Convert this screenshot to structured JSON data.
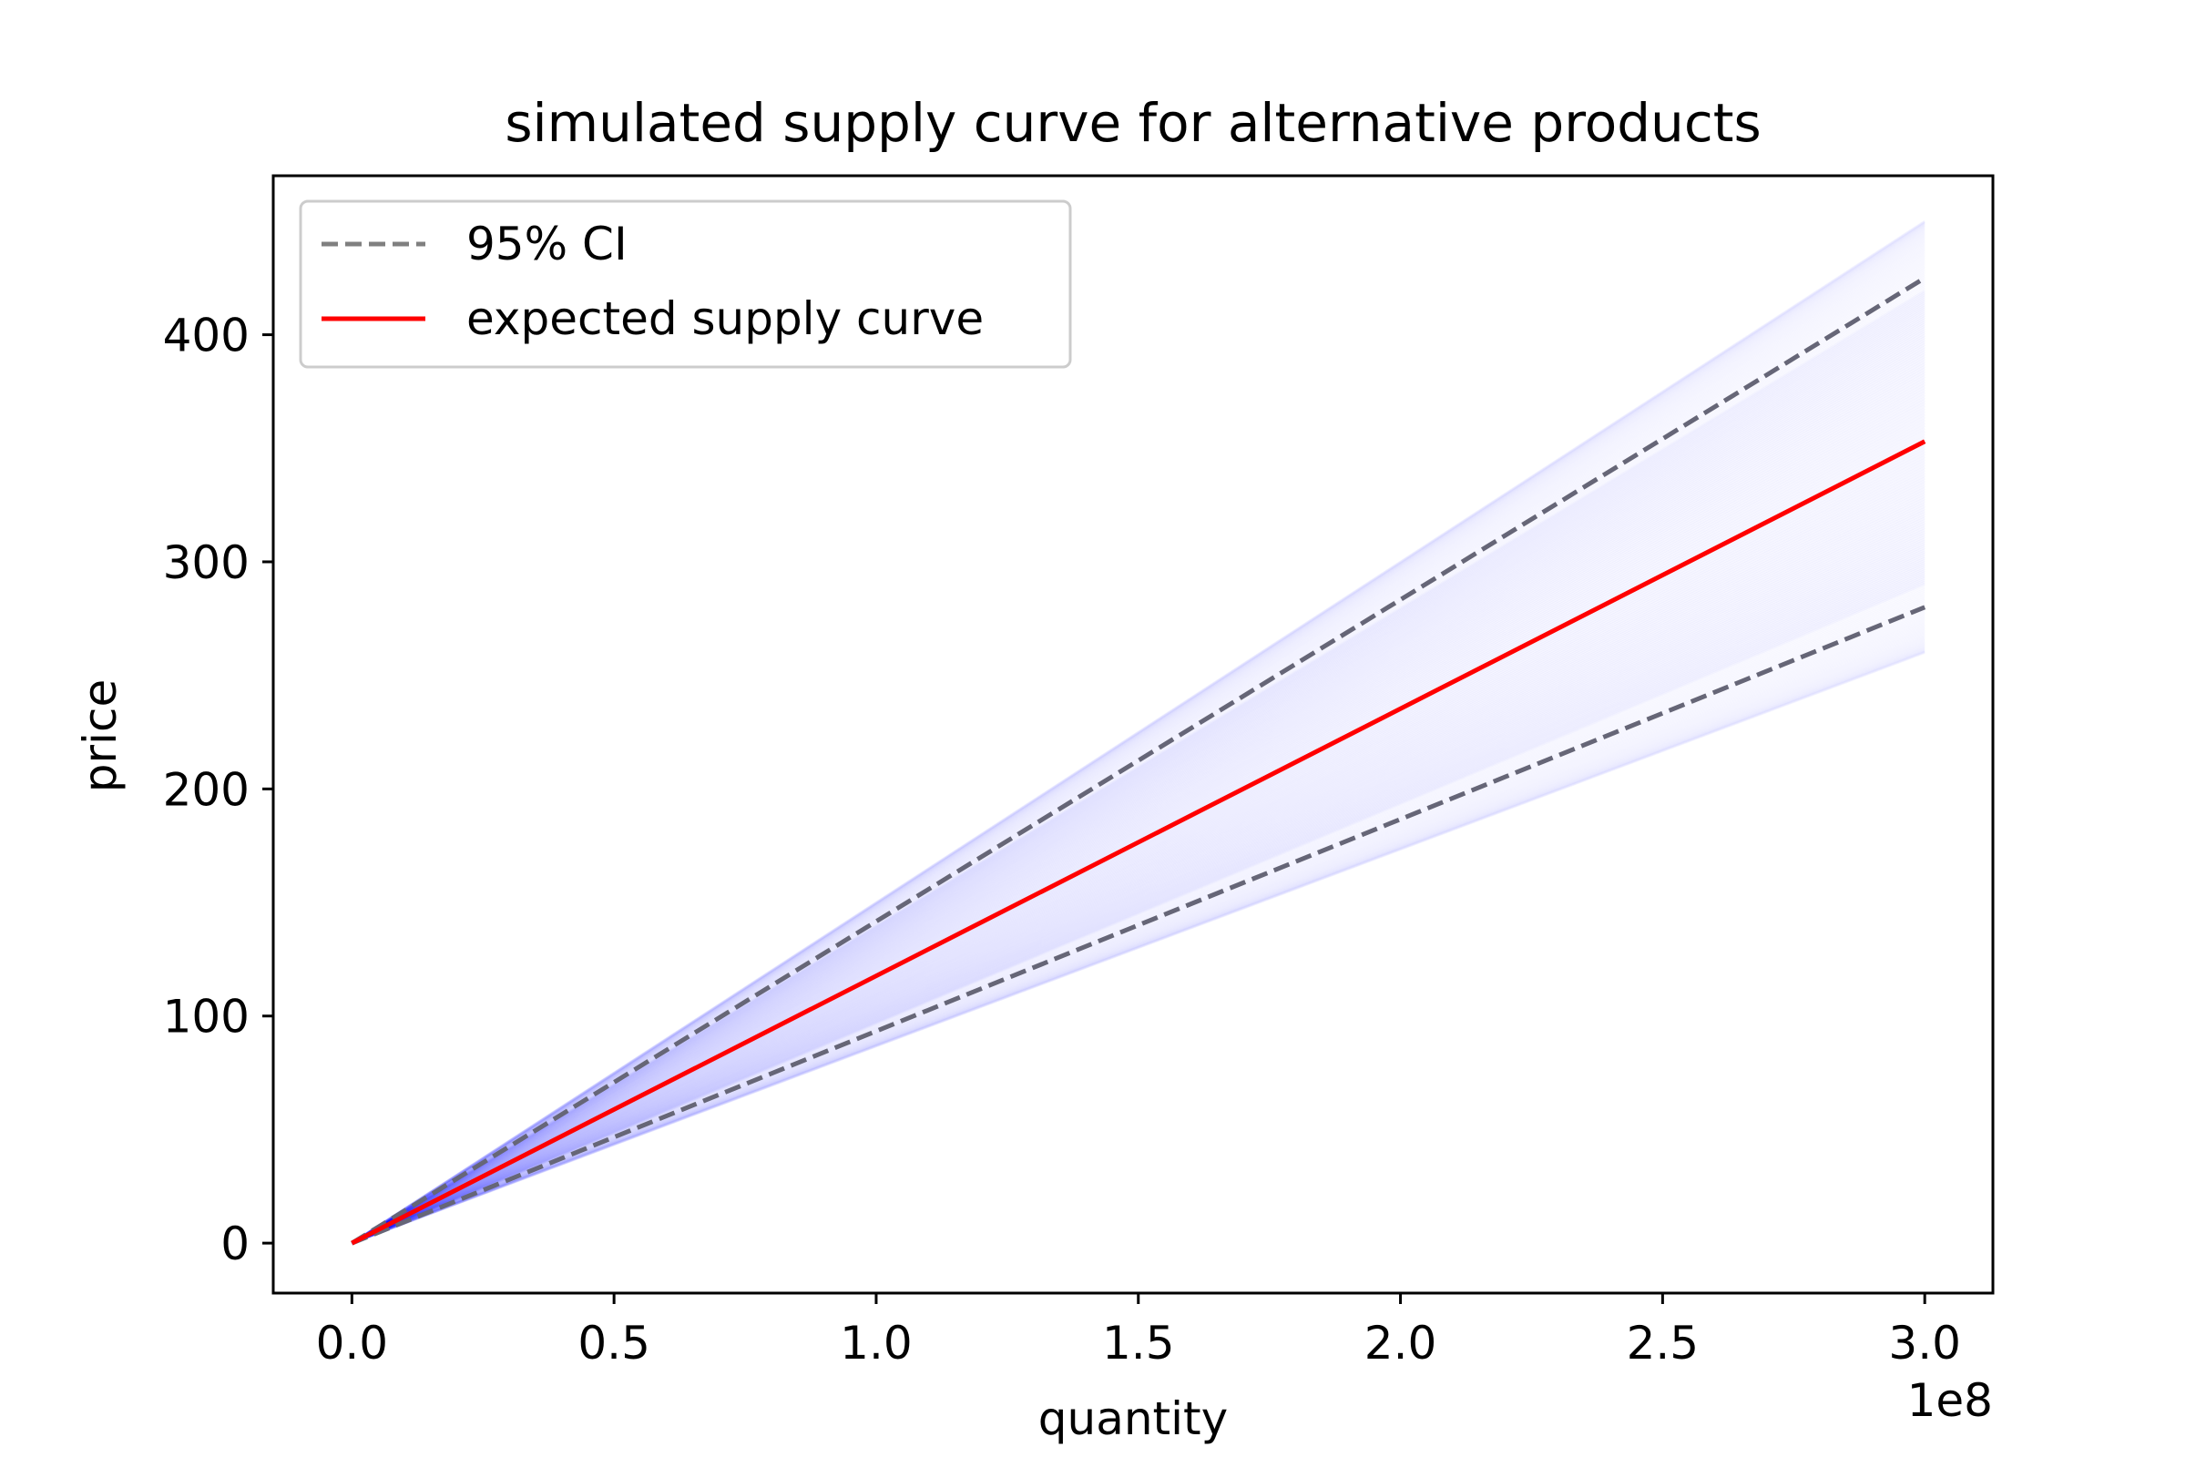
{
  "chart_data": {
    "type": "line",
    "title": "simulated supply curve for alternative products",
    "xlabel": "quantity",
    "ylabel": "price",
    "x_offset_label": "1e8",
    "xlim": [
      -0.15,
      3.13
    ],
    "ylim": [
      -22,
      470
    ],
    "xticks": [
      0.0,
      0.5,
      1.0,
      1.5,
      2.0,
      2.5,
      3.0
    ],
    "xtick_labels": [
      "0.0",
      "0.5",
      "1.0",
      "1.5",
      "2.0",
      "2.5",
      "3.0"
    ],
    "yticks": [
      0,
      100,
      200,
      300,
      400
    ],
    "ytick_labels": [
      "0",
      "100",
      "200",
      "300",
      "400"
    ],
    "grid": false,
    "legend_position": "upper-left",
    "x": [
      0.0,
      3.0
    ],
    "series": [
      {
        "name": "95% CI",
        "style": "dashed",
        "color": "#666677",
        "values": [
          0,
          425
        ]
      },
      {
        "name": "95% CI",
        "style": "dashed",
        "color": "#666677",
        "values": [
          0,
          280
        ]
      },
      {
        "name": "expected supply curve",
        "style": "solid",
        "color": "#ff0000",
        "values": [
          0,
          353
        ]
      }
    ],
    "simulation_band": {
      "color": "#0000ff",
      "endpoint_range_at_x_max": [
        260,
        450
      ],
      "endpoint_range_dense": [
        290,
        420
      ]
    },
    "legend": [
      {
        "label": "95% CI",
        "style": "dashed",
        "color": "#808080"
      },
      {
        "label": "expected supply curve",
        "style": "solid",
        "color": "#ff0000"
      }
    ]
  }
}
